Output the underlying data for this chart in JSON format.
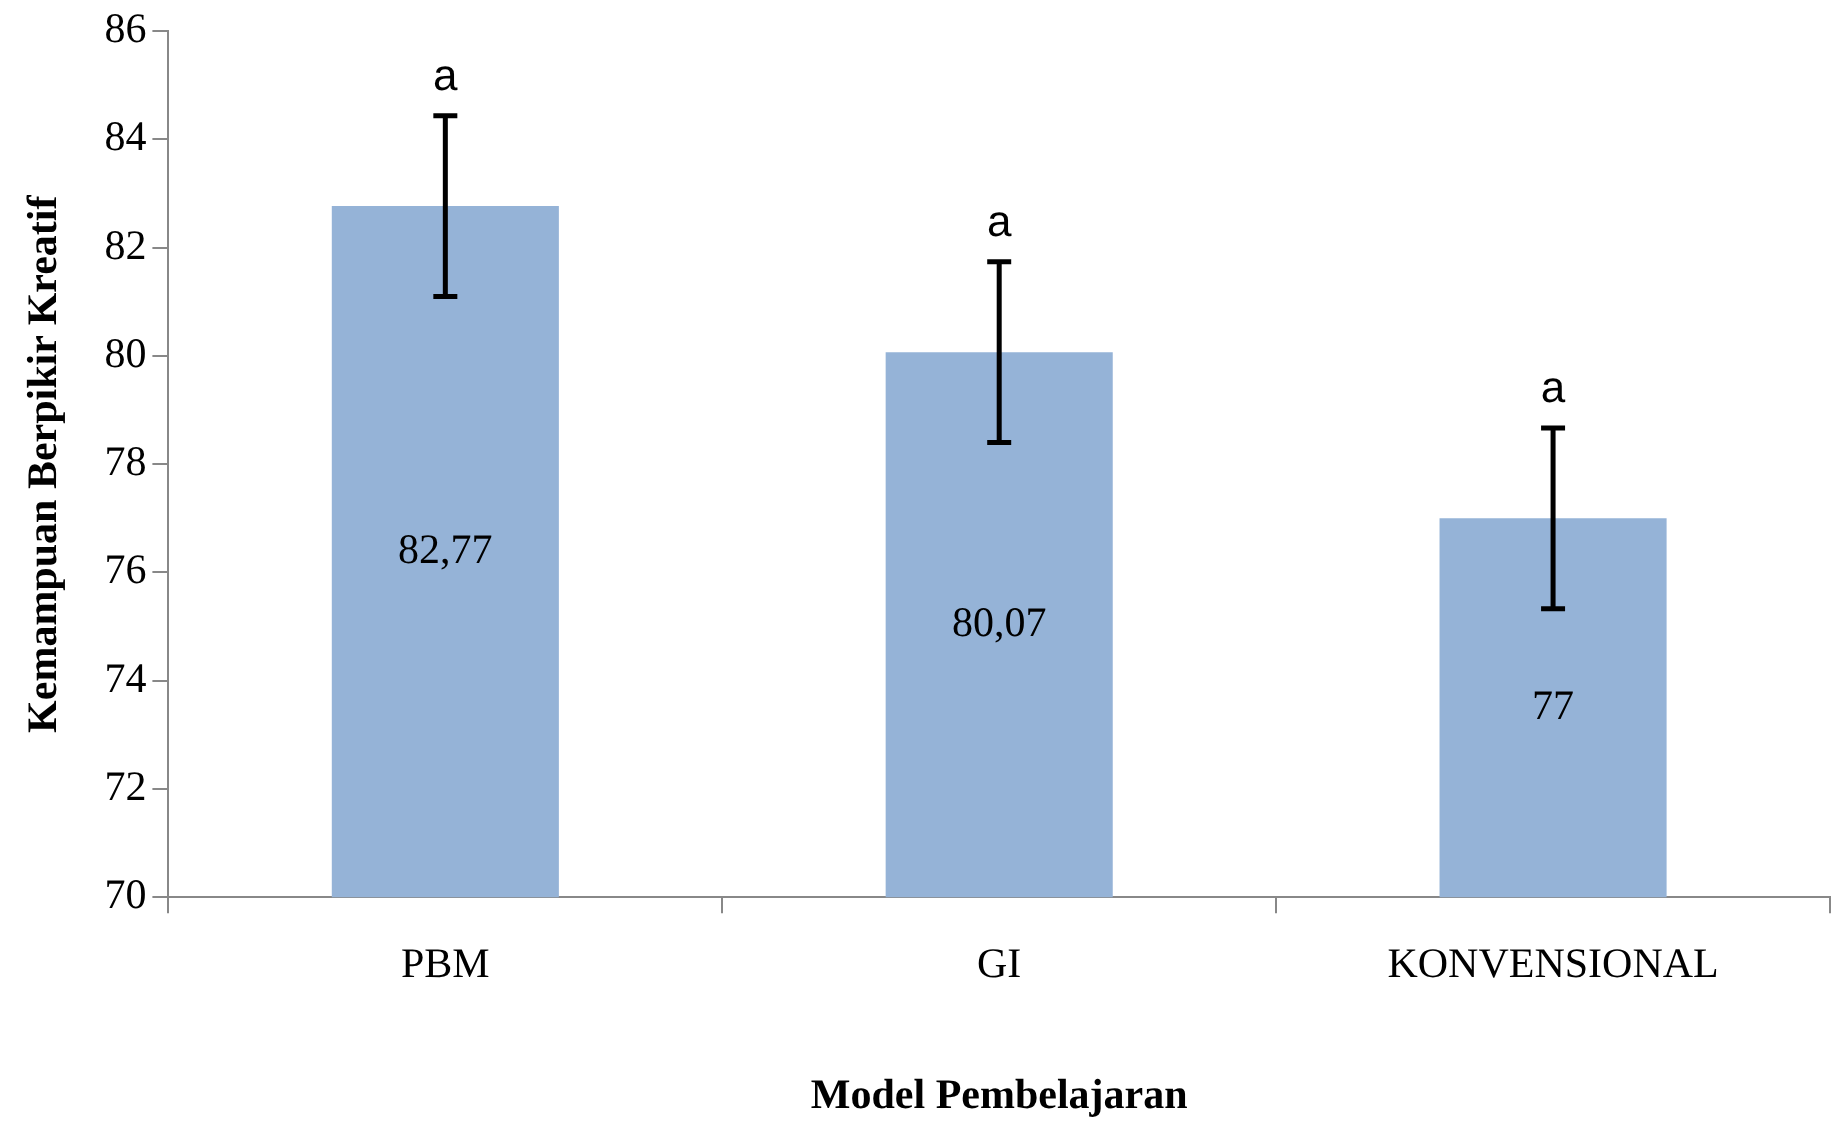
{
  "chart_data": {
    "type": "bar",
    "xlabel": "Model Pembelajaran",
    "ylabel": "Kemampuan Berpikir Kreatif",
    "categories": [
      "PBM",
      "GI",
      "KONVENSIONAL"
    ],
    "values": [
      82.77,
      80.07,
      77
    ],
    "value_labels": [
      "82,77",
      "80,07",
      "77"
    ],
    "errors": [
      1.67,
      1.67,
      1.67
    ],
    "color": "#95b3d7",
    "ylim": [
      70,
      86
    ],
    "yticks": [
      70,
      72,
      74,
      76,
      78,
      80,
      82,
      84,
      86
    ],
    "grid": false,
    "legend": false,
    "annotations": [
      {
        "text": "a",
        "x": "PBM",
        "y": 84.44
      },
      {
        "text": "a",
        "x": "GI",
        "y": 81.74
      },
      {
        "text": "a",
        "x": "KONVENSIONAL",
        "y": 78.67
      }
    ]
  }
}
